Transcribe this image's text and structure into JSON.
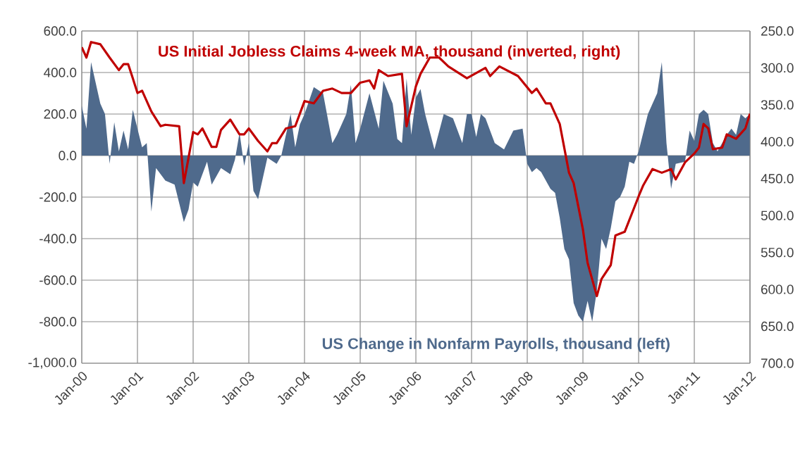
{
  "chart_data": {
    "type": "area",
    "xlim": [
      "2000-01",
      "2012-01"
    ],
    "xticks": [
      {
        "value": "2000-01",
        "label": "Jan-00"
      },
      {
        "value": "2001-01",
        "label": "Jan-01"
      },
      {
        "value": "2002-01",
        "label": "Jan-02"
      },
      {
        "value": "2003-01",
        "label": "Jan-03"
      },
      {
        "value": "2004-01",
        "label": "Jan-04"
      },
      {
        "value": "2005-01",
        "label": "Jan-05"
      },
      {
        "value": "2006-01",
        "label": "Jan-06"
      },
      {
        "value": "2007-01",
        "label": "Jan-07"
      },
      {
        "value": "2008-01",
        "label": "Jan-08"
      },
      {
        "value": "2009-01",
        "label": "Jan-09"
      },
      {
        "value": "2010-01",
        "label": "Jan-10"
      },
      {
        "value": "2011-01",
        "label": "Jan-11"
      },
      {
        "value": "2012-01",
        "label": "Jan-12"
      }
    ],
    "ylim": [
      -1000,
      600
    ],
    "yticks": [
      {
        "value": -1000,
        "label": "-1,000.0"
      },
      {
        "value": -800,
        "label": "-800.0"
      },
      {
        "value": -600,
        "label": "-600.0"
      },
      {
        "value": -400,
        "label": "-400.0"
      },
      {
        "value": -200,
        "label": "-200.0"
      },
      {
        "value": 0,
        "label": "0.0"
      },
      {
        "value": 200,
        "label": "200.0"
      },
      {
        "value": 400,
        "label": "400.0"
      },
      {
        "value": 600,
        "label": "600.0"
      }
    ],
    "y2lim": [
      700,
      250
    ],
    "y2ticks": [
      {
        "value": 250,
        "label": "250.0"
      },
      {
        "value": 300,
        "label": "300.0"
      },
      {
        "value": 350,
        "label": "350.0"
      },
      {
        "value": 400,
        "label": "400.0"
      },
      {
        "value": 450,
        "label": "450.0"
      },
      {
        "value": 500,
        "label": "500.0"
      },
      {
        "value": 550,
        "label": "550.0"
      },
      {
        "value": 600,
        "label": "600.0"
      },
      {
        "value": 650,
        "label": "650.0"
      },
      {
        "value": 700,
        "label": "700.0"
      }
    ],
    "grid": true,
    "series": [
      {
        "name": "US Change in Nonfarm Payrolls, thousand (left)",
        "color": "#4f6a8c",
        "x": [
          "2000-01",
          "2000-02",
          "2000-03",
          "2000-05",
          "2000-06",
          "2000-07",
          "2000-08",
          "2000-09",
          "2000-10",
          "2000-11",
          "2000-12",
          "2001-01",
          "2001-02",
          "2001-03",
          "2001-04",
          "2001-05",
          "2001-07",
          "2001-09",
          "2001-11",
          "2001-12",
          "2002-01",
          "2002-02",
          "2002-04",
          "2002-05",
          "2002-07",
          "2002-09",
          "2002-10",
          "2002-11",
          "2002-12",
          "2003-01",
          "2003-02",
          "2003-03",
          "2003-05",
          "2003-07",
          "2003-08",
          "2003-09",
          "2003-10",
          "2003-11",
          "2003-12",
          "2004-01",
          "2004-03",
          "2004-05",
          "2004-07",
          "2004-08",
          "2004-10",
          "2004-11",
          "2004-12",
          "2005-01",
          "2005-03",
          "2005-05",
          "2005-06",
          "2005-08",
          "2005-09",
          "2005-10",
          "2005-11",
          "2005-12",
          "2006-01",
          "2006-02",
          "2006-03",
          "2006-05",
          "2006-07",
          "2006-09",
          "2006-11",
          "2006-12",
          "2007-01",
          "2007-02",
          "2007-03",
          "2007-04",
          "2007-06",
          "2007-08",
          "2007-10",
          "2007-12",
          "2008-01",
          "2008-02",
          "2008-03",
          "2008-04",
          "2008-06",
          "2008-07",
          "2008-08",
          "2008-09",
          "2008-10",
          "2008-11",
          "2008-12",
          "2009-01",
          "2009-02",
          "2009-03",
          "2009-04",
          "2009-05",
          "2009-06",
          "2009-07",
          "2009-08",
          "2009-09",
          "2009-10",
          "2009-11",
          "2009-12",
          "2010-01",
          "2010-03",
          "2010-05",
          "2010-06",
          "2010-07",
          "2010-08",
          "2010-09",
          "2010-11",
          "2010-12",
          "2011-01",
          "2011-02",
          "2011-03",
          "2011-04",
          "2011-05",
          "2011-06",
          "2011-08",
          "2011-09",
          "2011-10",
          "2011-11",
          "2011-12",
          "2012-01"
        ],
        "values": [
          240,
          130,
          450,
          250,
          200,
          -40,
          160,
          20,
          120,
          30,
          220,
          130,
          40,
          60,
          -270,
          -60,
          -120,
          -140,
          -320,
          -260,
          -130,
          -150,
          -30,
          -140,
          -60,
          -90,
          -20,
          110,
          -50,
          60,
          -170,
          -210,
          -10,
          -40,
          0,
          100,
          200,
          40,
          150,
          200,
          330,
          300,
          60,
          100,
          200,
          340,
          60,
          130,
          300,
          130,
          360,
          250,
          80,
          60,
          370,
          100,
          280,
          320,
          200,
          30,
          200,
          180,
          60,
          200,
          200,
          90,
          200,
          180,
          60,
          30,
          120,
          130,
          -40,
          -80,
          -60,
          -80,
          -160,
          -180,
          -300,
          -450,
          -500,
          -710,
          -770,
          -800,
          -700,
          -800,
          -650,
          -400,
          -450,
          -350,
          -220,
          -200,
          -150,
          -30,
          -40,
          20,
          200,
          300,
          450,
          60,
          -160,
          -40,
          -30,
          120,
          70,
          200,
          220,
          200,
          60,
          20,
          100,
          130,
          100,
          200,
          180,
          200
        ]
      },
      {
        "name": "US Initial Jobless Claims 4-week MA, thousand (inverted, right)",
        "type": "line",
        "axis": "y2",
        "color": "#c00000",
        "x": [
          "2000-01",
          "2000-02",
          "2000-03",
          "2000-05",
          "2000-07",
          "2000-09",
          "2000-10",
          "2000-11",
          "2000-12",
          "2001-01",
          "2001-02",
          "2001-04",
          "2001-06",
          "2001-07",
          "2001-10",
          "2001-11",
          "2001-12",
          "2002-01",
          "2002-02",
          "2002-03",
          "2002-05",
          "2002-06",
          "2002-07",
          "2002-09",
          "2002-11",
          "2002-12",
          "2003-01",
          "2003-03",
          "2003-05",
          "2003-06",
          "2003-07",
          "2003-09",
          "2003-11",
          "2004-01",
          "2004-03",
          "2004-05",
          "2004-07",
          "2004-09",
          "2004-11",
          "2005-01",
          "2005-03",
          "2005-04",
          "2005-05",
          "2005-07",
          "2005-10",
          "2005-11",
          "2006-01",
          "2006-02",
          "2006-04",
          "2006-06",
          "2006-08",
          "2006-12",
          "2007-04",
          "2007-05",
          "2007-07",
          "2007-11",
          "2008-02",
          "2008-03",
          "2008-05",
          "2008-06",
          "2008-08",
          "2008-10",
          "2008-11",
          "2009-01",
          "2009-02",
          "2009-04",
          "2009-05",
          "2009-07",
          "2009-08",
          "2009-10",
          "2010-01",
          "2010-02",
          "2010-04",
          "2010-06",
          "2010-08",
          "2010-09",
          "2010-11",
          "2011-01",
          "2011-02",
          "2011-03",
          "2011-04",
          "2011-05",
          "2011-07",
          "2011-08",
          "2011-10",
          "2011-12",
          "2012-01"
        ],
        "values": [
          272,
          286,
          265,
          268,
          286,
          303,
          295,
          295,
          314,
          334,
          331,
          359,
          379,
          377,
          379,
          456,
          422,
          387,
          390,
          382,
          407,
          407,
          384,
          370,
          390,
          390,
          382,
          399,
          413,
          402,
          402,
          382,
          379,
          345,
          348,
          331,
          328,
          334,
          334,
          320,
          317,
          328,
          303,
          311,
          308,
          379,
          325,
          308,
          286,
          286,
          298,
          314,
          300,
          311,
          298,
          311,
          334,
          328,
          348,
          348,
          376,
          442,
          456,
          519,
          564,
          609,
          586,
          567,
          527,
          522,
          474,
          459,
          437,
          442,
          437,
          451,
          428,
          416,
          408,
          376,
          382,
          410,
          408,
          390,
          396,
          382,
          362
        ]
      }
    ]
  }
}
